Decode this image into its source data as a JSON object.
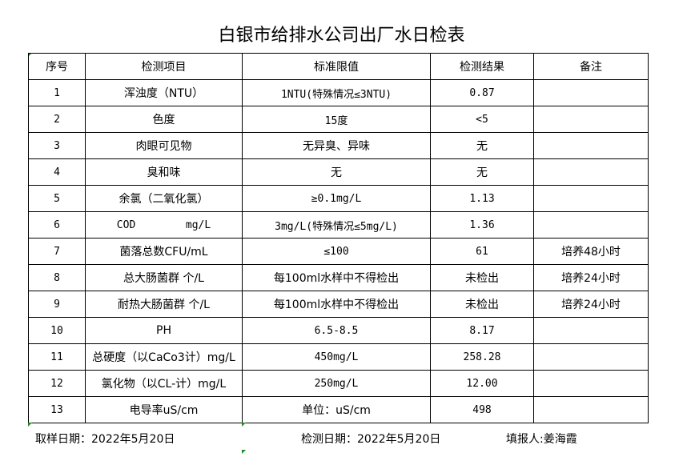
{
  "title": "白银市给排水公司出厂水日检表",
  "columns": [
    "序号",
    "检测项目",
    "标准限值",
    "检测结果",
    "备注"
  ],
  "rows": [
    [
      "1",
      "浑浊度（NTU）",
      "1NTU(特殊情况≤3NTU)",
      "0.87",
      ""
    ],
    [
      "2",
      "色度",
      "15度",
      "<5",
      ""
    ],
    [
      "3",
      "肉眼可见物",
      "无异臭、异味",
      "无",
      ""
    ],
    [
      "4",
      "臭和味",
      "无",
      "无",
      ""
    ],
    [
      "5",
      "余氯（二氧化氯）",
      "≥0.1mg/L",
      "1.13",
      ""
    ],
    [
      "6",
      "COD        mg/L",
      "3mg/L(特殊情况≤5mg/L)",
      "1.36",
      ""
    ],
    [
      "7",
      "菌落总数CFU/mL",
      "≤100",
      "61",
      "培养48小时"
    ],
    [
      "8",
      "总大肠菌群 个/L",
      "每100ml水样中不得检出",
      "未检出",
      "培养24小时"
    ],
    [
      "9",
      "耐热大肠菌群 个/L",
      "每100ml水样中不得检出",
      "未检出",
      "培养24小时"
    ],
    [
      "10",
      "PH",
      "6.5-8.5",
      "8.17",
      ""
    ],
    [
      "11",
      "总硬度（以CaCo3计）mg/L",
      "450mg/L",
      "258.28",
      ""
    ],
    [
      "12",
      "氯化物（以CL-计）mg/L",
      "250mg/L",
      "12.00",
      ""
    ],
    [
      "13",
      "电导率uS/cm",
      "单位：uS/cm",
      "498",
      ""
    ]
  ],
  "footer": {
    "sample_date": "取样日期：2022年5月20日",
    "test_date": "检测日期：2022年5月20日",
    "reporter": "填报人:姜海霞"
  }
}
